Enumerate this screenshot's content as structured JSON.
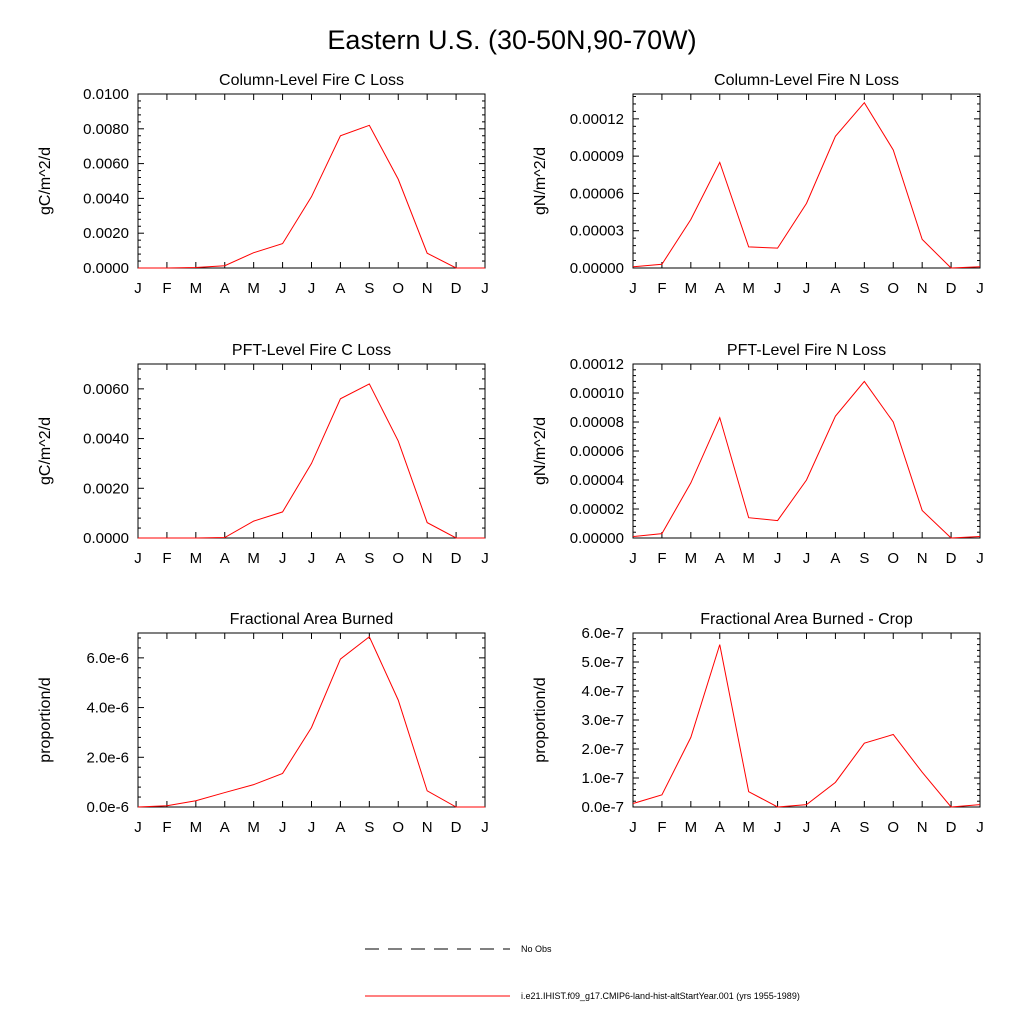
{
  "figure": {
    "title": "Eastern U.S. (30-50N,90-70W)"
  },
  "legend": {
    "entries": [
      {
        "label": "No Obs",
        "style": "dashed",
        "color": "#000000"
      },
      {
        "label": "i.e21.IHIST.f09_g17.CMIP6-land-hist-altStartYear.001 (yrs 1955-1989)",
        "style": "solid",
        "color": "#ff0000"
      }
    ]
  },
  "chart_data": [
    {
      "type": "line",
      "title": "Column-Level Fire C Loss",
      "ylabel": "gC/m^2/d",
      "xticks": [
        "J",
        "F",
        "M",
        "A",
        "M",
        "J",
        "J",
        "A",
        "S",
        "O",
        "N",
        "D",
        "J"
      ],
      "ylim": [
        0,
        0.01
      ],
      "yticks": [
        "0.0000",
        "0.0020",
        "0.0040",
        "0.0060",
        "0.0080",
        "0.0100"
      ],
      "ytick_values": [
        0,
        0.002,
        0.004,
        0.006,
        0.008,
        0.01
      ],
      "series": [
        {
          "color": "#ff0000",
          "values": [
            0.0,
            0.0,
            3e-05,
            0.00013,
            0.00088,
            0.0014,
            0.0041,
            0.0076,
            0.0082,
            0.0051,
            0.00085,
            0.0,
            0.0
          ]
        }
      ]
    },
    {
      "type": "line",
      "title": "Column-Level Fire N Loss",
      "ylabel": "gN/m^2/d",
      "xticks": [
        "J",
        "F",
        "M",
        "A",
        "M",
        "J",
        "J",
        "A",
        "S",
        "O",
        "N",
        "D",
        "J"
      ],
      "ylim": [
        0,
        0.00014
      ],
      "yticks": [
        "0.00000",
        "0.00003",
        "0.00006",
        "0.00009",
        "0.00012"
      ],
      "ytick_values": [
        0,
        3e-05,
        6e-05,
        9e-05,
        0.00012
      ],
      "series": [
        {
          "color": "#ff0000",
          "values": [
            1e-06,
            3e-06,
            3.9e-05,
            8.5e-05,
            1.7e-05,
            1.6e-05,
            5.2e-05,
            0.000106,
            0.000133,
            9.5e-05,
            2.3e-05,
            0.0,
            1e-06
          ]
        }
      ]
    },
    {
      "type": "line",
      "title": "PFT-Level Fire C Loss",
      "ylabel": "gC/m^2/d",
      "xticks": [
        "J",
        "F",
        "M",
        "A",
        "M",
        "J",
        "J",
        "A",
        "S",
        "O",
        "N",
        "D",
        "J"
      ],
      "ylim": [
        0,
        0.007
      ],
      "yticks": [
        "0.0000",
        "0.0020",
        "0.0040",
        "0.0060"
      ],
      "ytick_values": [
        0,
        0.002,
        0.004,
        0.006
      ],
      "series": [
        {
          "color": "#ff0000",
          "values": [
            0.0,
            0.0,
            0.0,
            2e-05,
            0.00068,
            0.00105,
            0.003,
            0.0056,
            0.0062,
            0.0039,
            0.00062,
            0.0,
            0.0
          ]
        }
      ]
    },
    {
      "type": "line",
      "title": "PFT-Level Fire N Loss",
      "ylabel": "gN/m^2/d",
      "xticks": [
        "J",
        "F",
        "M",
        "A",
        "M",
        "J",
        "J",
        "A",
        "S",
        "O",
        "N",
        "D",
        "J"
      ],
      "ylim": [
        0,
        0.00012
      ],
      "yticks": [
        "0.00000",
        "0.00002",
        "0.00004",
        "0.00006",
        "0.00008",
        "0.00010",
        "0.00012"
      ],
      "ytick_values": [
        0,
        2e-05,
        4e-05,
        6e-05,
        8e-05,
        0.0001,
        0.00012
      ],
      "series": [
        {
          "color": "#ff0000",
          "values": [
            1e-06,
            3e-06,
            3.8e-05,
            8.3e-05,
            1.4e-05,
            1.2e-05,
            4e-05,
            8.4e-05,
            0.000108,
            8e-05,
            1.9e-05,
            0.0,
            1e-06
          ]
        }
      ]
    },
    {
      "type": "line",
      "title": "Fractional Area Burned",
      "ylabel": "proportion/d",
      "xticks": [
        "J",
        "F",
        "M",
        "A",
        "M",
        "J",
        "J",
        "A",
        "S",
        "O",
        "N",
        "D",
        "J"
      ],
      "ylim": [
        0,
        7e-06
      ],
      "yticks": [
        "0.0e-6",
        "2.0e-6",
        "4.0e-6",
        "6.0e-6"
      ],
      "ytick_values": [
        0,
        2e-06,
        4e-06,
        6e-06
      ],
      "series": [
        {
          "color": "#ff0000",
          "values": [
            0.0,
            5e-08,
            2.5e-07,
            5.8e-07,
            9e-07,
            1.35e-06,
            3.2e-06,
            5.95e-06,
            6.85e-06,
            4.3e-06,
            6.5e-07,
            0.0,
            0.0
          ]
        }
      ]
    },
    {
      "type": "line",
      "title": "Fractional Area Burned - Crop",
      "ylabel": "proportion/d",
      "xticks": [
        "J",
        "F",
        "M",
        "A",
        "M",
        "J",
        "J",
        "A",
        "S",
        "O",
        "N",
        "D",
        "J"
      ],
      "ylim": [
        0,
        6e-07
      ],
      "yticks": [
        "0.0e-7",
        "1.0e-7",
        "2.0e-7",
        "3.0e-7",
        "4.0e-7",
        "5.0e-7",
        "6.0e-7"
      ],
      "ytick_values": [
        0,
        1e-07,
        2e-07,
        3e-07,
        4e-07,
        5e-07,
        6e-07
      ],
      "series": [
        {
          "color": "#ff0000",
          "values": [
            1.2e-08,
            4.2e-08,
            2.4e-07,
            5.6e-07,
            5.3e-08,
            0.0,
            8e-09,
            8.5e-08,
            2.2e-07,
            2.5e-07,
            1.2e-07,
            0.0,
            8e-09
          ]
        }
      ]
    }
  ]
}
